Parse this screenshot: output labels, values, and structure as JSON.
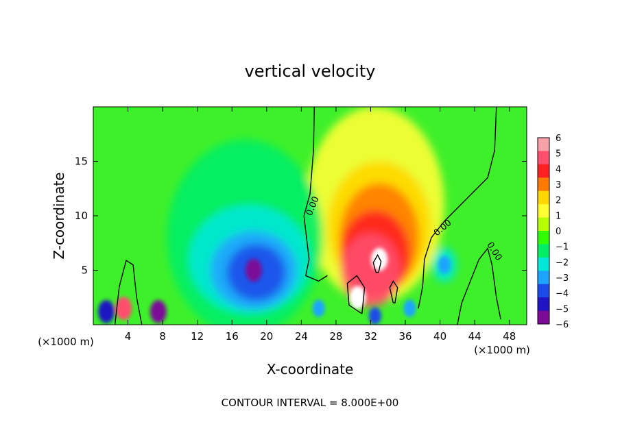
{
  "chart_data": {
    "type": "heatmap",
    "title": "vertical velocity",
    "xlabel": "X-coordinate",
    "ylabel": "Z-coordinate",
    "x_unit": "(×1000 m)",
    "y_unit": "(×1000 m)",
    "footer": "CONTOUR INTERVAL = 8.000E+00",
    "xlim": [
      0,
      50
    ],
    "ylim": [
      0,
      20
    ],
    "x_ticks": [
      4,
      8,
      12,
      16,
      20,
      24,
      28,
      32,
      36,
      40,
      44,
      48
    ],
    "y_ticks": [
      5,
      10,
      15
    ],
    "colorbar": {
      "min": -6,
      "max": 6,
      "ticks": [
        "6",
        "5",
        "4",
        "3",
        "2",
        "1",
        "0",
        "−1",
        "−2",
        "−3",
        "−4",
        "−5",
        "−6"
      ],
      "colors": [
        "#f7a0a8",
        "#ff4e6e",
        "#ff2020",
        "#ff7a00",
        "#ffd700",
        "#ffff33",
        "#b6ff00",
        "#31ff00",
        "#00ee66",
        "#00e8d8",
        "#1ea4ff",
        "#1b4ce8",
        "#1f13c2",
        "#7b0a96"
      ]
    },
    "contour_label": "0.00",
    "features": [
      {
        "kind": "updraft",
        "x": 33,
        "z": 6,
        "value": 6
      },
      {
        "kind": "updraft",
        "x": 30.5,
        "z": 2.5,
        "value": 6
      },
      {
        "kind": "updraft",
        "x": 3.5,
        "z": 1.5,
        "value": 5
      },
      {
        "kind": "downdraft",
        "x": 18.5,
        "z": 5,
        "value": -6
      },
      {
        "kind": "downdraft",
        "x": 1.5,
        "z": 1.2,
        "value": -5
      },
      {
        "kind": "downdraft",
        "x": 7.5,
        "z": 1.2,
        "value": -6
      },
      {
        "kind": "downdraft",
        "x": 32.5,
        "z": 0.8,
        "value": -4
      },
      {
        "kind": "downdraft",
        "x": 40.5,
        "z": 5.5,
        "value": -3
      },
      {
        "kind": "downdraft",
        "x": 26,
        "z": 1.5,
        "value": -3
      },
      {
        "kind": "downdraft",
        "x": 36.5,
        "z": 1.5,
        "value": -3
      }
    ]
  }
}
